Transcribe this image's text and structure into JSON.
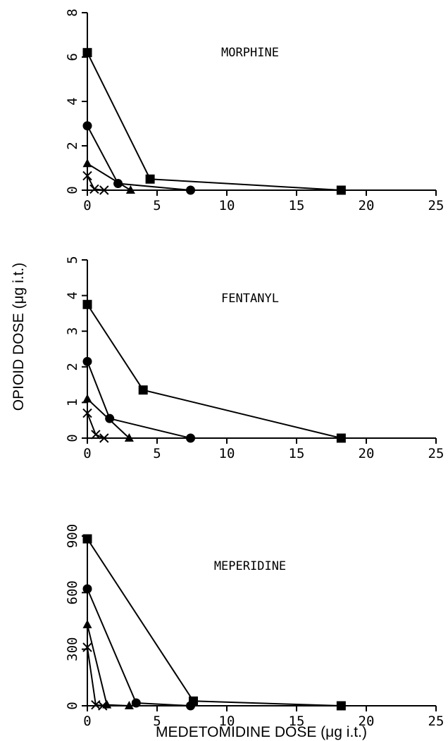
{
  "figure": {
    "ylabel": "OPIOID DOSE (μg i.t.)",
    "xlabel": "MEDETOMIDINE DOSE (μg i.t.)"
  },
  "chart_data": [
    {
      "type": "line",
      "title": "MORPHINE",
      "xlim": [
        0,
        25
      ],
      "ylim": [
        0,
        8
      ],
      "xticks": [
        "0",
        "5",
        "10",
        "15",
        "20",
        "25"
      ],
      "yticks": [
        "0",
        "2",
        "4",
        "6",
        "8"
      ],
      "grid": false,
      "series": [
        {
          "marker": "square",
          "x": [
            0,
            4.5,
            18.2
          ],
          "y": [
            6.2,
            0.5,
            0
          ]
        },
        {
          "marker": "circle",
          "x": [
            0,
            2.2,
            7.4
          ],
          "y": [
            2.9,
            0.3,
            0
          ]
        },
        {
          "marker": "triangle",
          "x": [
            0,
            3.1
          ],
          "y": [
            1.2,
            0
          ]
        },
        {
          "marker": "cross",
          "x": [
            0,
            0.5,
            1.2
          ],
          "y": [
            0.65,
            0.05,
            0
          ]
        }
      ]
    },
    {
      "type": "line",
      "title": "FENTANYL",
      "xlim": [
        0,
        25
      ],
      "ylim": [
        0,
        5
      ],
      "xticks": [
        "0",
        "5",
        "10",
        "15",
        "20",
        "25"
      ],
      "yticks": [
        "0",
        "1",
        "2",
        "3",
        "4",
        "5"
      ],
      "grid": false,
      "series": [
        {
          "marker": "square",
          "x": [
            0,
            4,
            18.2
          ],
          "y": [
            3.75,
            1.35,
            0
          ]
        },
        {
          "marker": "circle",
          "x": [
            0,
            1.6,
            7.4
          ],
          "y": [
            2.15,
            0.55,
            0
          ]
        },
        {
          "marker": "triangle",
          "x": [
            0,
            3
          ],
          "y": [
            1.1,
            0
          ]
        },
        {
          "marker": "cross",
          "x": [
            0,
            0.6,
            1.2
          ],
          "y": [
            0.7,
            0.1,
            0
          ]
        }
      ]
    },
    {
      "type": "line",
      "title": "MEPERIDINE",
      "xlim": [
        0,
        25
      ],
      "ylim": [
        0,
        900
      ],
      "xticks": [
        "0",
        "5",
        "10",
        "15",
        "20",
        "25"
      ],
      "yticks": [
        "0",
        "300",
        "600",
        "900"
      ],
      "grid": false,
      "series": [
        {
          "marker": "square",
          "x": [
            0,
            7.6,
            18.2
          ],
          "y": [
            885,
            25,
            0
          ]
        },
        {
          "marker": "circle",
          "x": [
            0,
            3.5,
            7.4
          ],
          "y": [
            620,
            15,
            0
          ]
        },
        {
          "marker": "triangle",
          "x": [
            0,
            1.4,
            3
          ],
          "y": [
            430,
            5,
            0
          ]
        },
        {
          "marker": "cross",
          "x": [
            0,
            0.6,
            1.1
          ],
          "y": [
            310,
            5,
            0
          ]
        }
      ]
    }
  ]
}
